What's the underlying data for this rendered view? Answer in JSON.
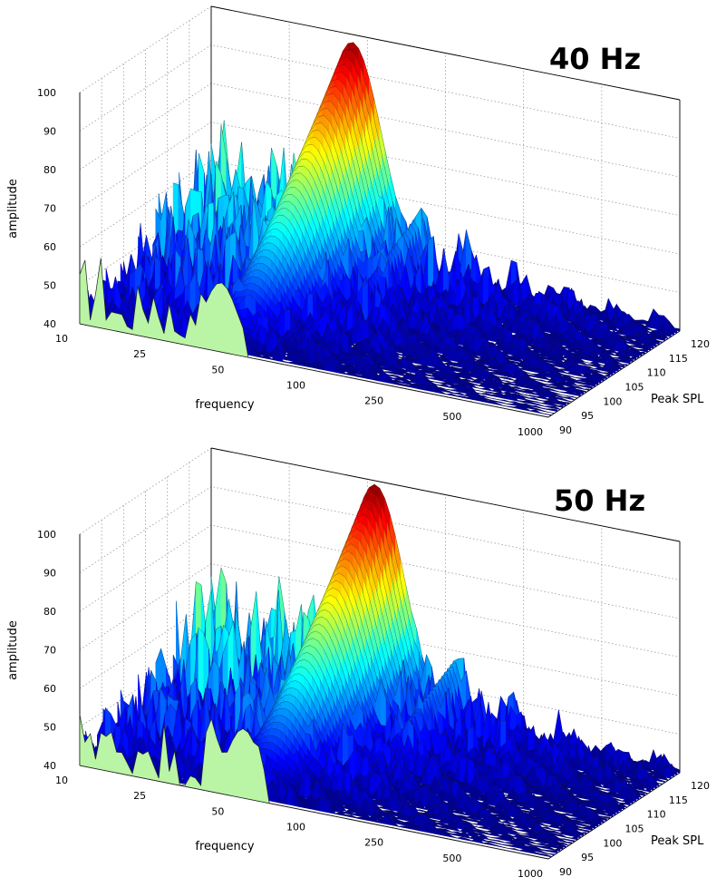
{
  "chart_data": [
    {
      "type": "surface",
      "title": "40 Hz",
      "xlabel": "frequency",
      "ylabel": "Peak SPL",
      "zlabel": "amplitude",
      "frequency_ticks": [
        "10",
        "25",
        "50",
        "100",
        "250",
        "500",
        "1000"
      ],
      "spl_ticks": [
        "90",
        "95",
        "100",
        "105",
        "110",
        "115",
        "120"
      ],
      "amplitude_ticks": [
        "40",
        "50",
        "60",
        "70",
        "80",
        "90",
        "100"
      ],
      "zlim": [
        40,
        100
      ],
      "spl_range": [
        90,
        120
      ],
      "peak": {
        "frequency_hz": 40,
        "peak_spl": 120,
        "amplitude": 98
      },
      "colormap": "jet",
      "front_slice_color": "#b9f5a5"
    },
    {
      "type": "surface",
      "title": "50 Hz",
      "xlabel": "frequency",
      "ylabel": "Peak SPL",
      "zlabel": "amplitude",
      "frequency_ticks": [
        "10",
        "25",
        "50",
        "100",
        "250",
        "500",
        "1000"
      ],
      "spl_ticks": [
        "90",
        "95",
        "100",
        "105",
        "110",
        "115",
        "120"
      ],
      "amplitude_ticks": [
        "40",
        "50",
        "60",
        "70",
        "80",
        "90",
        "100"
      ],
      "zlim": [
        40,
        100
      ],
      "spl_range": [
        90,
        120
      ],
      "peak": {
        "frequency_hz": 50,
        "peak_spl": 120,
        "amplitude": 99
      },
      "colormap": "jet",
      "front_slice_color": "#b9f5a5"
    }
  ]
}
